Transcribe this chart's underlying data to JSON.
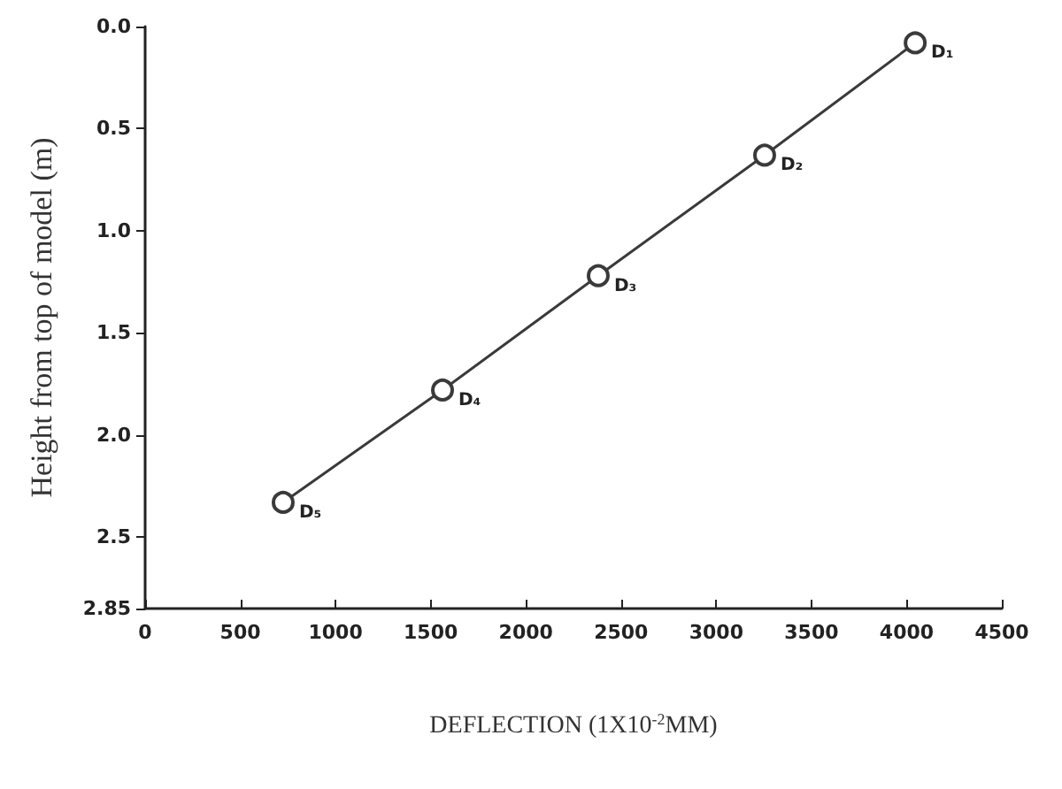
{
  "chart_data": {
    "type": "line",
    "xlabel": "DEFLECTION (1X10$^{-2}$MM)",
    "ylabel": "Height from top of model (m)",
    "x": [
      725,
      1562,
      2380,
      3254,
      4045
    ],
    "series": [
      {
        "color": "#3a3a3a",
        "values": [
          2.33,
          1.78,
          1.22,
          0.63,
          0.08
        ]
      }
    ],
    "xlim": [
      0,
      4500
    ],
    "xticks": [
      0,
      500,
      1000,
      1500,
      2000,
      2500,
      3000,
      3500,
      4000,
      4500
    ],
    "ylim": [
      2.85,
      0
    ],
    "yticks": [
      {
        "value": 0,
        "label": "0.0"
      },
      {
        "value": 0.5,
        "label": "0.5"
      },
      {
        "value": 1,
        "label": "1.0"
      },
      {
        "value": 1.5,
        "label": "1.5"
      },
      {
        "value": 2,
        "label": "2.0"
      },
      {
        "value": 2.5,
        "label": "2.5"
      },
      2.85
    ],
    "marker": "circle",
    "line_style": "solid",
    "grid": false,
    "annotations": [
      {
        "text": "D₁",
        "x": 4045,
        "y": 0.08
      },
      {
        "text": "D₂",
        "x": 3254,
        "y": 0.63
      },
      {
        "text": "D₃",
        "x": 2380,
        "y": 1.22
      },
      {
        "text": "D₄",
        "x": 1562,
        "y": 1.78
      },
      {
        "text": "D₅",
        "x": 725,
        "y": 2.33
      }
    ]
  }
}
